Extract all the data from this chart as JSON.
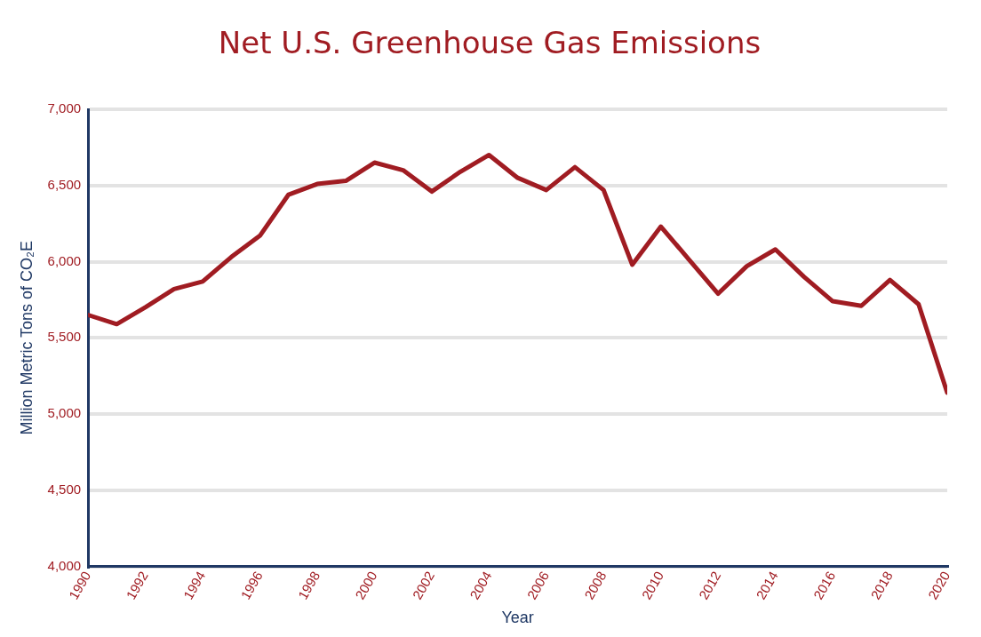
{
  "chart_data": {
    "type": "line",
    "title": "Net U.S. Greenhouse Gas Emissions",
    "xlabel": "Year",
    "ylabel": "Million Metric Tons of CO₂E",
    "x": [
      1990,
      1991,
      1992,
      1993,
      1994,
      1995,
      1996,
      1997,
      1998,
      1999,
      2000,
      2001,
      2002,
      2003,
      2004,
      2005,
      2006,
      2007,
      2008,
      2009,
      2010,
      2011,
      2012,
      2013,
      2014,
      2015,
      2016,
      2017,
      2018,
      2019,
      2020
    ],
    "series": [
      {
        "color": "#a01c22",
        "values": [
          5650,
          5590,
          5700,
          5820,
          5870,
          6030,
          6170,
          6440,
          6510,
          6530,
          6650,
          6600,
          6460,
          6590,
          6700,
          6550,
          6470,
          6620,
          6470,
          5980,
          6230,
          6010,
          5790,
          5970,
          6080,
          5900,
          5740,
          5710,
          5880,
          5720,
          5140
        ]
      }
    ],
    "xlim": [
      1990,
      2020
    ],
    "xticks": [
      1990,
      1992,
      1994,
      1996,
      1998,
      2000,
      2002,
      2004,
      2006,
      2008,
      2010,
      2012,
      2014,
      2016,
      2018,
      2020
    ],
    "ylim": [
      4000,
      7000
    ],
    "yticks": [
      {
        "value": 4000,
        "label": "4,000"
      },
      {
        "value": 4500,
        "label": "4,500"
      },
      {
        "value": 5000,
        "label": "5,000"
      },
      {
        "value": 5500,
        "label": "5,500"
      },
      {
        "value": 6000,
        "label": "6,000"
      },
      {
        "value": 6500,
        "label": "6,500"
      },
      {
        "value": 7000,
        "label": "7,000"
      }
    ],
    "grid": "y",
    "legend": false,
    "marker": "none",
    "line_style": "solid"
  }
}
